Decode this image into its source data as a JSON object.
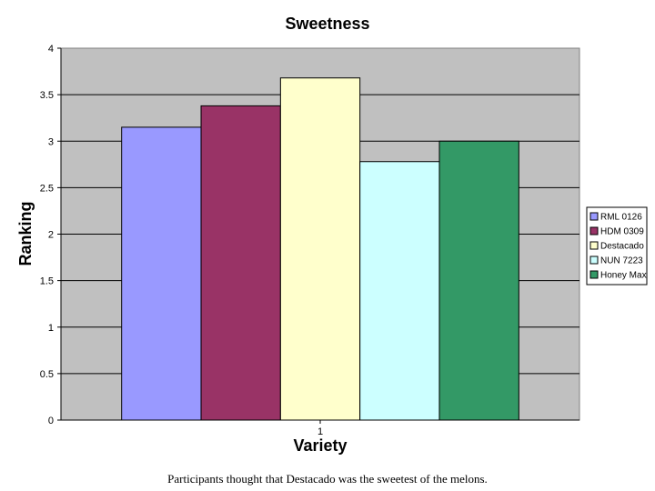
{
  "chart_data": {
    "type": "bar",
    "title": "Sweetness",
    "xlabel": "Variety",
    "ylabel": "Ranking",
    "categories": [
      "1"
    ],
    "series": [
      {
        "name": "RML 0126",
        "values": [
          3.15
        ],
        "color": "#9999ff"
      },
      {
        "name": "HDM 0309",
        "values": [
          3.38
        ],
        "color": "#993366"
      },
      {
        "name": "Destacado",
        "values": [
          3.68
        ],
        "color": "#ffffcc"
      },
      {
        "name": "NUN 7223",
        "values": [
          2.78
        ],
        "color": "#ccffff"
      },
      {
        "name": "Honey Max",
        "values": [
          3.0
        ],
        "color": "#339966"
      }
    ],
    "ylim": [
      0,
      4
    ],
    "yticks": [
      "0",
      "0.5",
      "1",
      "1.5",
      "2",
      "2.5",
      "3",
      "3.5",
      "4"
    ],
    "grid": true,
    "legend_position": "right",
    "plot_background": "#c0c0c0"
  },
  "caption": "Participants thought that Destacado was the sweetest of the melons."
}
